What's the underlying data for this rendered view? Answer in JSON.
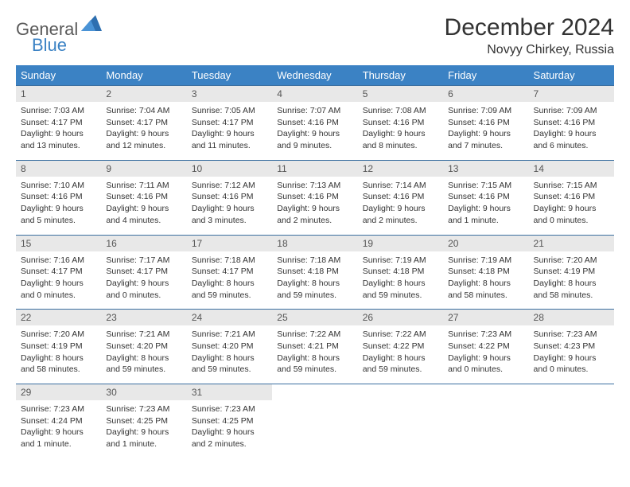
{
  "brand": {
    "word1": "General",
    "word2": "Blue"
  },
  "title": "December 2024",
  "location": "Novyy Chirkey, Russia",
  "colors": {
    "header_bg": "#3b82c4",
    "header_fg": "#ffffff",
    "daynum_bg": "#e8e8e8",
    "rule": "#3b6fa0",
    "text": "#333333",
    "logo_gray": "#5a5a5a",
    "logo_blue": "#3b82c4"
  },
  "weekdays": [
    "Sunday",
    "Monday",
    "Tuesday",
    "Wednesday",
    "Thursday",
    "Friday",
    "Saturday"
  ],
  "weeks": [
    [
      {
        "n": "1",
        "sr": "7:03 AM",
        "ss": "4:17 PM",
        "dl": "9 hours and 13 minutes."
      },
      {
        "n": "2",
        "sr": "7:04 AM",
        "ss": "4:17 PM",
        "dl": "9 hours and 12 minutes."
      },
      {
        "n": "3",
        "sr": "7:05 AM",
        "ss": "4:17 PM",
        "dl": "9 hours and 11 minutes."
      },
      {
        "n": "4",
        "sr": "7:07 AM",
        "ss": "4:16 PM",
        "dl": "9 hours and 9 minutes."
      },
      {
        "n": "5",
        "sr": "7:08 AM",
        "ss": "4:16 PM",
        "dl": "9 hours and 8 minutes."
      },
      {
        "n": "6",
        "sr": "7:09 AM",
        "ss": "4:16 PM",
        "dl": "9 hours and 7 minutes."
      },
      {
        "n": "7",
        "sr": "7:09 AM",
        "ss": "4:16 PM",
        "dl": "9 hours and 6 minutes."
      }
    ],
    [
      {
        "n": "8",
        "sr": "7:10 AM",
        "ss": "4:16 PM",
        "dl": "9 hours and 5 minutes."
      },
      {
        "n": "9",
        "sr": "7:11 AM",
        "ss": "4:16 PM",
        "dl": "9 hours and 4 minutes."
      },
      {
        "n": "10",
        "sr": "7:12 AM",
        "ss": "4:16 PM",
        "dl": "9 hours and 3 minutes."
      },
      {
        "n": "11",
        "sr": "7:13 AM",
        "ss": "4:16 PM",
        "dl": "9 hours and 2 minutes."
      },
      {
        "n": "12",
        "sr": "7:14 AM",
        "ss": "4:16 PM",
        "dl": "9 hours and 2 minutes."
      },
      {
        "n": "13",
        "sr": "7:15 AM",
        "ss": "4:16 PM",
        "dl": "9 hours and 1 minute."
      },
      {
        "n": "14",
        "sr": "7:15 AM",
        "ss": "4:16 PM",
        "dl": "9 hours and 0 minutes."
      }
    ],
    [
      {
        "n": "15",
        "sr": "7:16 AM",
        "ss": "4:17 PM",
        "dl": "9 hours and 0 minutes."
      },
      {
        "n": "16",
        "sr": "7:17 AM",
        "ss": "4:17 PM",
        "dl": "9 hours and 0 minutes."
      },
      {
        "n": "17",
        "sr": "7:18 AM",
        "ss": "4:17 PM",
        "dl": "8 hours and 59 minutes."
      },
      {
        "n": "18",
        "sr": "7:18 AM",
        "ss": "4:18 PM",
        "dl": "8 hours and 59 minutes."
      },
      {
        "n": "19",
        "sr": "7:19 AM",
        "ss": "4:18 PM",
        "dl": "8 hours and 59 minutes."
      },
      {
        "n": "20",
        "sr": "7:19 AM",
        "ss": "4:18 PM",
        "dl": "8 hours and 58 minutes."
      },
      {
        "n": "21",
        "sr": "7:20 AM",
        "ss": "4:19 PM",
        "dl": "8 hours and 58 minutes."
      }
    ],
    [
      {
        "n": "22",
        "sr": "7:20 AM",
        "ss": "4:19 PM",
        "dl": "8 hours and 58 minutes."
      },
      {
        "n": "23",
        "sr": "7:21 AM",
        "ss": "4:20 PM",
        "dl": "8 hours and 59 minutes."
      },
      {
        "n": "24",
        "sr": "7:21 AM",
        "ss": "4:20 PM",
        "dl": "8 hours and 59 minutes."
      },
      {
        "n": "25",
        "sr": "7:22 AM",
        "ss": "4:21 PM",
        "dl": "8 hours and 59 minutes."
      },
      {
        "n": "26",
        "sr": "7:22 AM",
        "ss": "4:22 PM",
        "dl": "8 hours and 59 minutes."
      },
      {
        "n": "27",
        "sr": "7:23 AM",
        "ss": "4:22 PM",
        "dl": "9 hours and 0 minutes."
      },
      {
        "n": "28",
        "sr": "7:23 AM",
        "ss": "4:23 PM",
        "dl": "9 hours and 0 minutes."
      }
    ],
    [
      {
        "n": "29",
        "sr": "7:23 AM",
        "ss": "4:24 PM",
        "dl": "9 hours and 1 minute."
      },
      {
        "n": "30",
        "sr": "7:23 AM",
        "ss": "4:25 PM",
        "dl": "9 hours and 1 minute."
      },
      {
        "n": "31",
        "sr": "7:23 AM",
        "ss": "4:25 PM",
        "dl": "9 hours and 2 minutes."
      },
      null,
      null,
      null,
      null
    ]
  ],
  "labels": {
    "sunrise": "Sunrise:",
    "sunset": "Sunset:",
    "daylight": "Daylight:"
  }
}
